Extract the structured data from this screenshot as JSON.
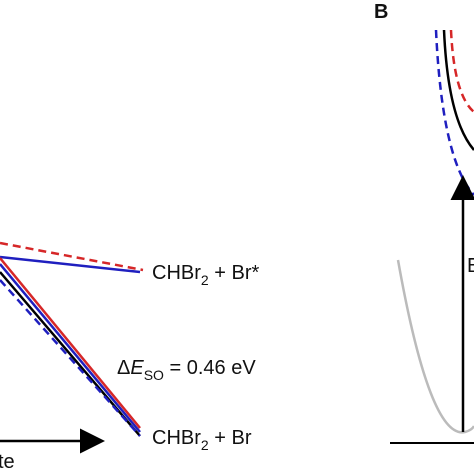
{
  "panel_label": "B",
  "labels": {
    "upper_asymptote": {
      "species": "CHBr",
      "subscript": "2",
      "rest": " + Br*"
    },
    "splitting": {
      "delta": "Δ",
      "symbol": "E",
      "subscript": "SO",
      "rest": " = 0.46 eV"
    },
    "lower_asymptote": {
      "species": "CHBr",
      "subscript": "2",
      "rest": " + Br"
    },
    "axis_fragment": "te",
    "arrow_fragment": "E"
  }
}
